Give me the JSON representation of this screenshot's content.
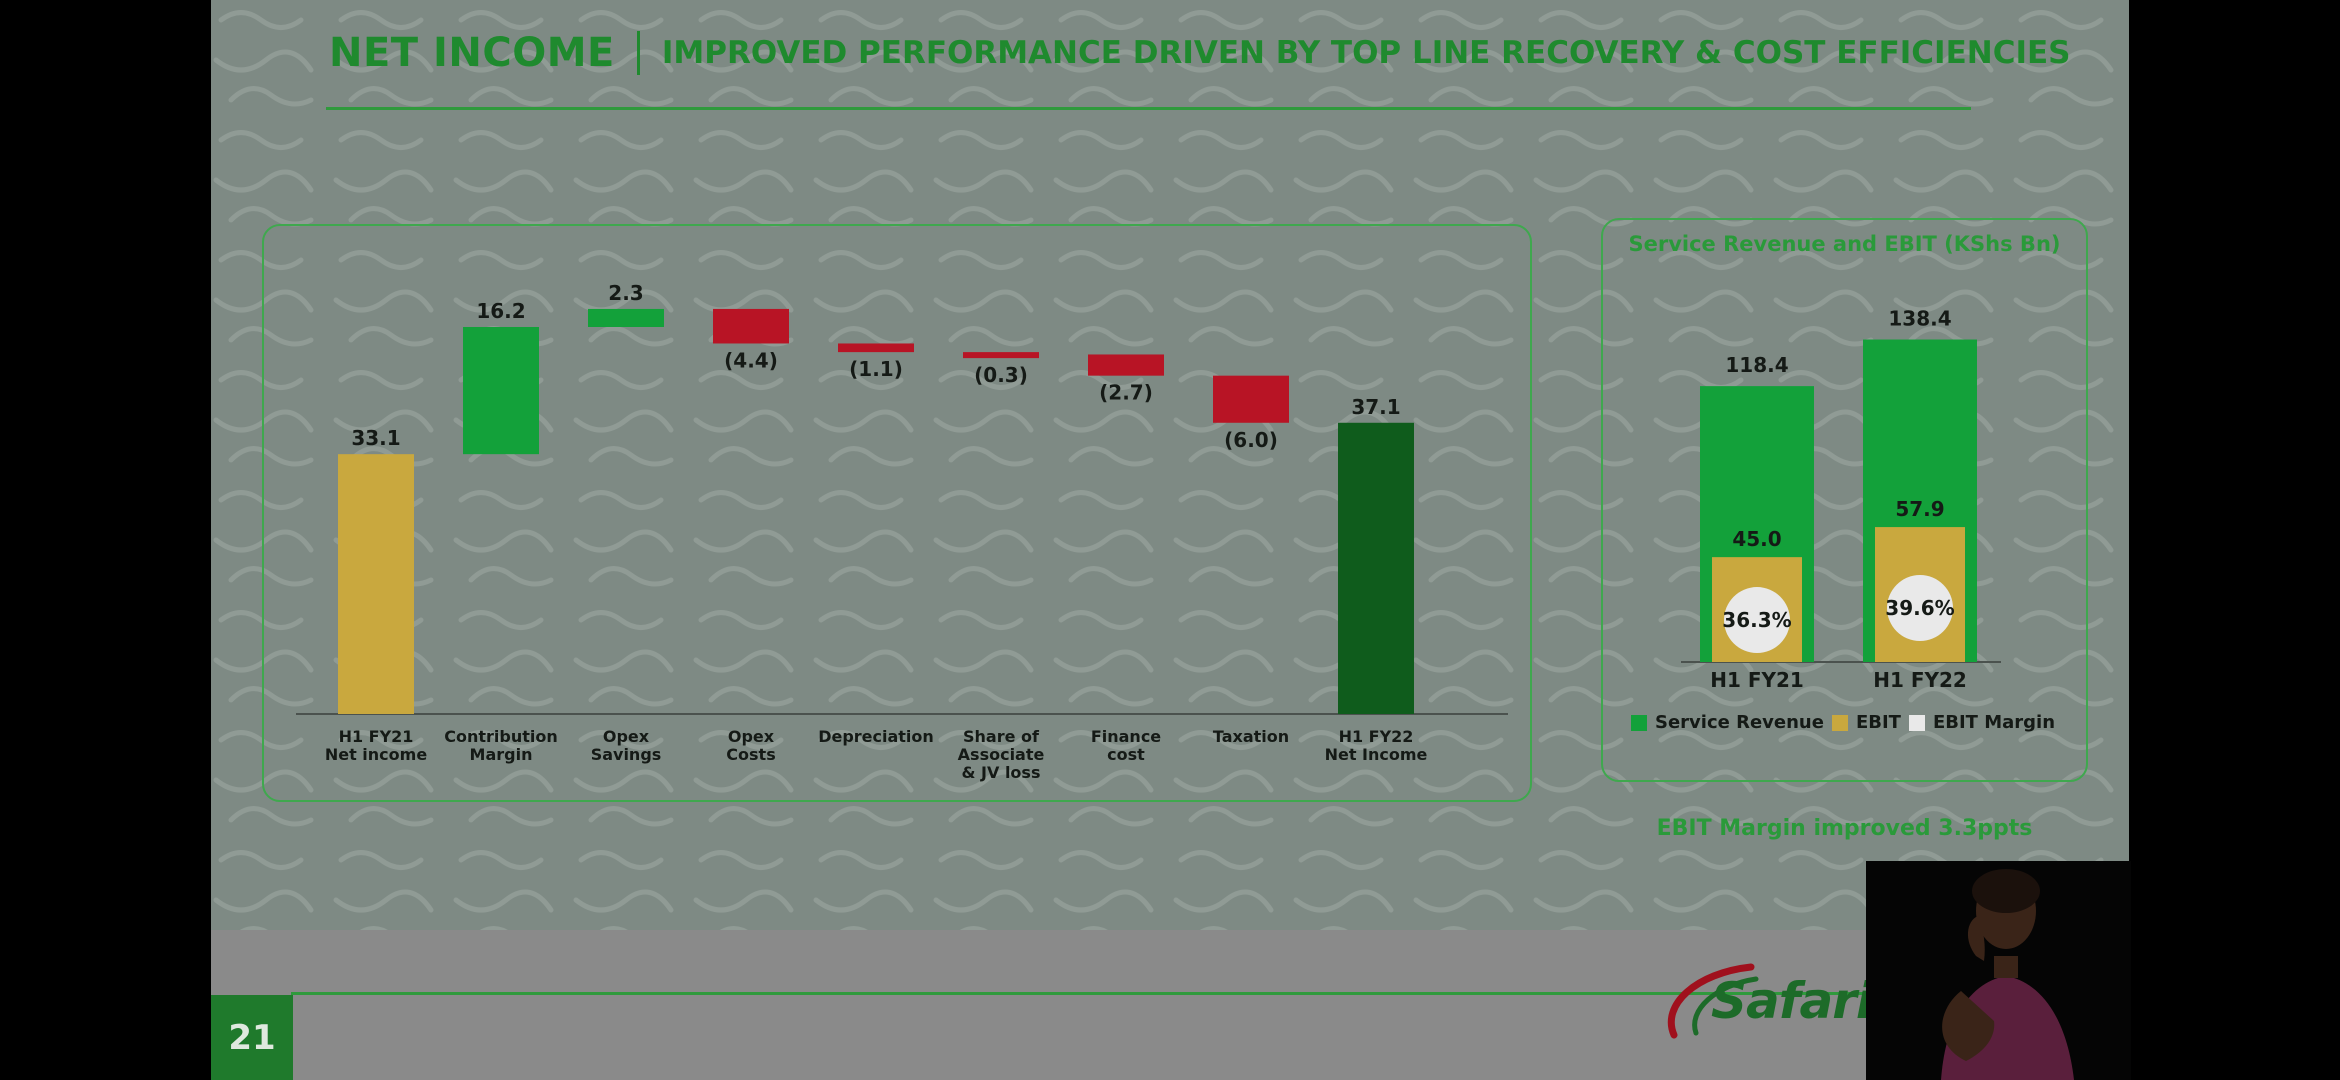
{
  "slide": {
    "title": "NET INCOME",
    "subtitle": "IMPROVED PERFORMANCE DRIVEN BY TOP LINE RECOVERY & COST EFFICIENCIES",
    "page_number": "21",
    "logo_text": "Safarico",
    "caption": "EBIT Margin improved 3.3ppts"
  },
  "colors": {
    "green": "#1f8a2e",
    "dark_green": "#0f5c1c",
    "bright_green": "#13a13a",
    "gold": "#c9a83e",
    "red": "#b81425",
    "white": "#e9e9e9"
  },
  "chart_data": [
    {
      "type": "waterfall",
      "categories": [
        [
          "H1 FY21",
          "Net income"
        ],
        [
          "Contribution",
          "Margin"
        ],
        [
          "Opex",
          "Savings"
        ],
        [
          "Opex",
          "Costs"
        ],
        [
          "Depreciation"
        ],
        [
          "Share of",
          "Associate",
          "& JV loss"
        ],
        [
          "Finance",
          "cost"
        ],
        [
          "Taxation"
        ],
        [
          "H1 FY22",
          "Net Income"
        ]
      ],
      "values": [
        33.1,
        16.2,
        2.3,
        -4.4,
        -1.1,
        -0.3,
        -2.7,
        -6.0,
        37.1
      ],
      "labels": [
        "33.1",
        "16.2",
        "2.3",
        "(4.4)",
        "(1.1)",
        "(0.3)",
        "(2.7)",
        "(6.0)",
        "37.1"
      ],
      "kinds": [
        "total",
        "delta",
        "delta",
        "delta",
        "delta",
        "delta",
        "delta",
        "delta",
        "total"
      ]
    },
    {
      "type": "bar",
      "title": "Service Revenue and EBIT (KShs Bn)",
      "categories": [
        "H1 FY21",
        "H1 FY22"
      ],
      "series": [
        {
          "name": "Service Revenue",
          "values": [
            118.4,
            138.4
          ]
        },
        {
          "name": "EBIT",
          "values": [
            45.0,
            57.9
          ]
        },
        {
          "name": "EBIT Margin",
          "values": [
            36.3,
            39.6
          ],
          "unit": "%"
        }
      ],
      "value_labels": {
        "service_revenue": [
          "118.4",
          "138.4"
        ],
        "ebit": [
          "45.0",
          "57.9"
        ],
        "ebit_margin": [
          "36.3%",
          "39.6%"
        ]
      },
      "legend": {
        "position": "bottom"
      }
    }
  ]
}
